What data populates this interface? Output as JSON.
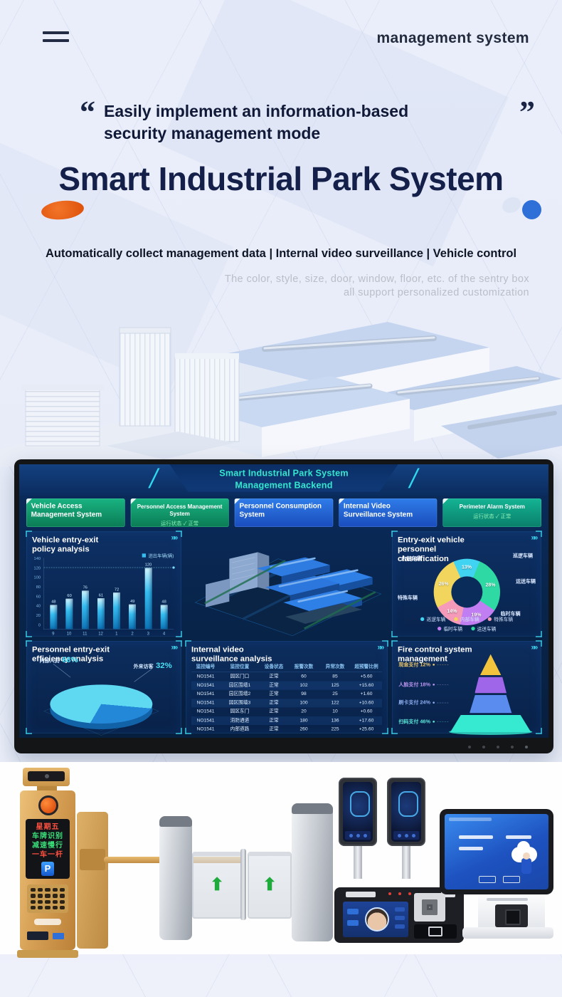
{
  "header": {
    "brand": "management system"
  },
  "hero": {
    "quote_open": "“",
    "quote_close": "”",
    "quote_line1": "Easily implement an information-based",
    "quote_line2": "security management mode",
    "title": "Smart Industrial Park System",
    "features": "Automatically collect management data | Internal video surveillance | Vehicle control",
    "note_line1": "The color, style, size, door, window, floor, etc. of the sentry box",
    "note_line2": "all support personalized customization"
  },
  "dashboard": {
    "title_line1": "Smart Industrial Park System",
    "title_line2": "Management Backend",
    "more": "»»",
    "tabs": [
      {
        "label": "Vehicle Access Management System"
      },
      {
        "label": "Personnel Access Management System",
        "status": "运行状态 ✓ 正常"
      },
      {
        "label": "Personnel Consumption System"
      },
      {
        "label": "Internal Video Surveillance System"
      },
      {
        "label": "Perimeter Alarm System",
        "status": "运行状态 ✓ 正常"
      }
    ]
  },
  "colors": {
    "title_navy": "#15204a",
    "accent_cyan": "#3fd9f2",
    "dashboard_cyan": "#35e6cf",
    "tab_green": "#119c70",
    "tab_blue": "#2365d8",
    "tab_teal": "#12a084",
    "orange_decor": "#e55a10",
    "blue_decor": "#2f6fd8",
    "bar_fill": "#35bdf0"
  },
  "chart_data": [
    {
      "id": "vehicle_policy_bar",
      "type": "bar",
      "title": "Vehicle entry-exit policy analysis",
      "legend": "进出车辆(辆)",
      "categories": [
        "9",
        "10",
        "11",
        "12",
        "1",
        "2",
        "3",
        "4"
      ],
      "values": [
        48,
        60,
        76,
        61,
        72,
        49,
        120,
        48
      ],
      "yticks": [
        0,
        20,
        40,
        60,
        80,
        100,
        120,
        140
      ],
      "ylim": [
        0,
        140
      ],
      "ref_line": 120,
      "grid": false,
      "legend_position": "top-right"
    },
    {
      "id": "vehicle_classification_donut",
      "type": "pie",
      "subtype": "donut",
      "title": "Entry-exit vehicle personnel classification",
      "slices": [
        {
          "label": "巡逻车辆",
          "value": 13,
          "color": "#41d3f2"
        },
        {
          "label": "运送车辆",
          "value": 28,
          "color": "#2fd9a4"
        },
        {
          "label": "临时车辆",
          "value": 19,
          "color": "#c07ef2"
        },
        {
          "label": "特殊车辆",
          "value": 14,
          "color": "#f59ab8"
        },
        {
          "label": "内部车辆",
          "value": 26,
          "color": "#f2d55c"
        }
      ],
      "legend_rows": [
        [
          0,
          4,
          3
        ],
        [
          2,
          1
        ]
      ],
      "legend_position": "bottom"
    },
    {
      "id": "personnel_efficiency_pie",
      "type": "pie",
      "title": "Personnel entry-exit efficiency analysis",
      "slices": [
        {
          "label": "内部人员",
          "value": 68,
          "color": "#5fd8f2"
        },
        {
          "label": "外来访客",
          "value": 32,
          "color": "#2488d8"
        }
      ]
    },
    {
      "id": "video_surveillance_table",
      "type": "table",
      "title": "Internal video surveillance analysis",
      "columns": [
        "监控编号",
        "监控位置",
        "设备状态",
        "报警次数",
        "异常次数",
        "超预警比例"
      ],
      "rows": [
        [
          "NO1541",
          "园区门口",
          "正常",
          "60",
          "85",
          "+5.60"
        ],
        [
          "NO1541",
          "园区围墙1",
          "正常",
          "102",
          "125",
          "+15.60"
        ],
        [
          "NO1541",
          "园区围墙2",
          "正常",
          "98",
          "25",
          "+1.60"
        ],
        [
          "NO1541",
          "园区围墙3",
          "正常",
          "100",
          "122",
          "+10.60"
        ],
        [
          "NO1541",
          "园区东门",
          "正常",
          "20",
          "10",
          "+0.60"
        ],
        [
          "NO1541",
          "消防通道",
          "正常",
          "180",
          "136",
          "+17.60"
        ],
        [
          "NO1541",
          "内部道路",
          "正常",
          "260",
          "225",
          "+25.60"
        ]
      ]
    },
    {
      "id": "fire_control_funnel",
      "type": "funnel",
      "title": "Fire control system management",
      "slices": [
        {
          "label": "现金支付",
          "value": 12,
          "color": "#f2c43d",
          "label_color": "#ecc66a"
        },
        {
          "label": "人脸支付",
          "value": 18,
          "color": "#9f66ea",
          "label_color": "#bb96f2"
        },
        {
          "label": "刷卡支付",
          "value": 24,
          "color": "#5a8cf0",
          "label_color": "#8fb0f4"
        },
        {
          "label": "扫码支付",
          "value": 46,
          "color": "#35ead0",
          "label_color": "#5ceadc"
        }
      ]
    }
  ],
  "products": {
    "arrow_icon": "⬆",
    "parking_badge": "P",
    "led_lines": [
      {
        "text": "星期五",
        "color": "#ff5040"
      },
      {
        "text": "车牌识别",
        "color": "#39e07a"
      },
      {
        "text": "减速慢行",
        "color": "#39e07a"
      },
      {
        "text": "一车一杆",
        "color": "#ff5040"
      }
    ]
  }
}
